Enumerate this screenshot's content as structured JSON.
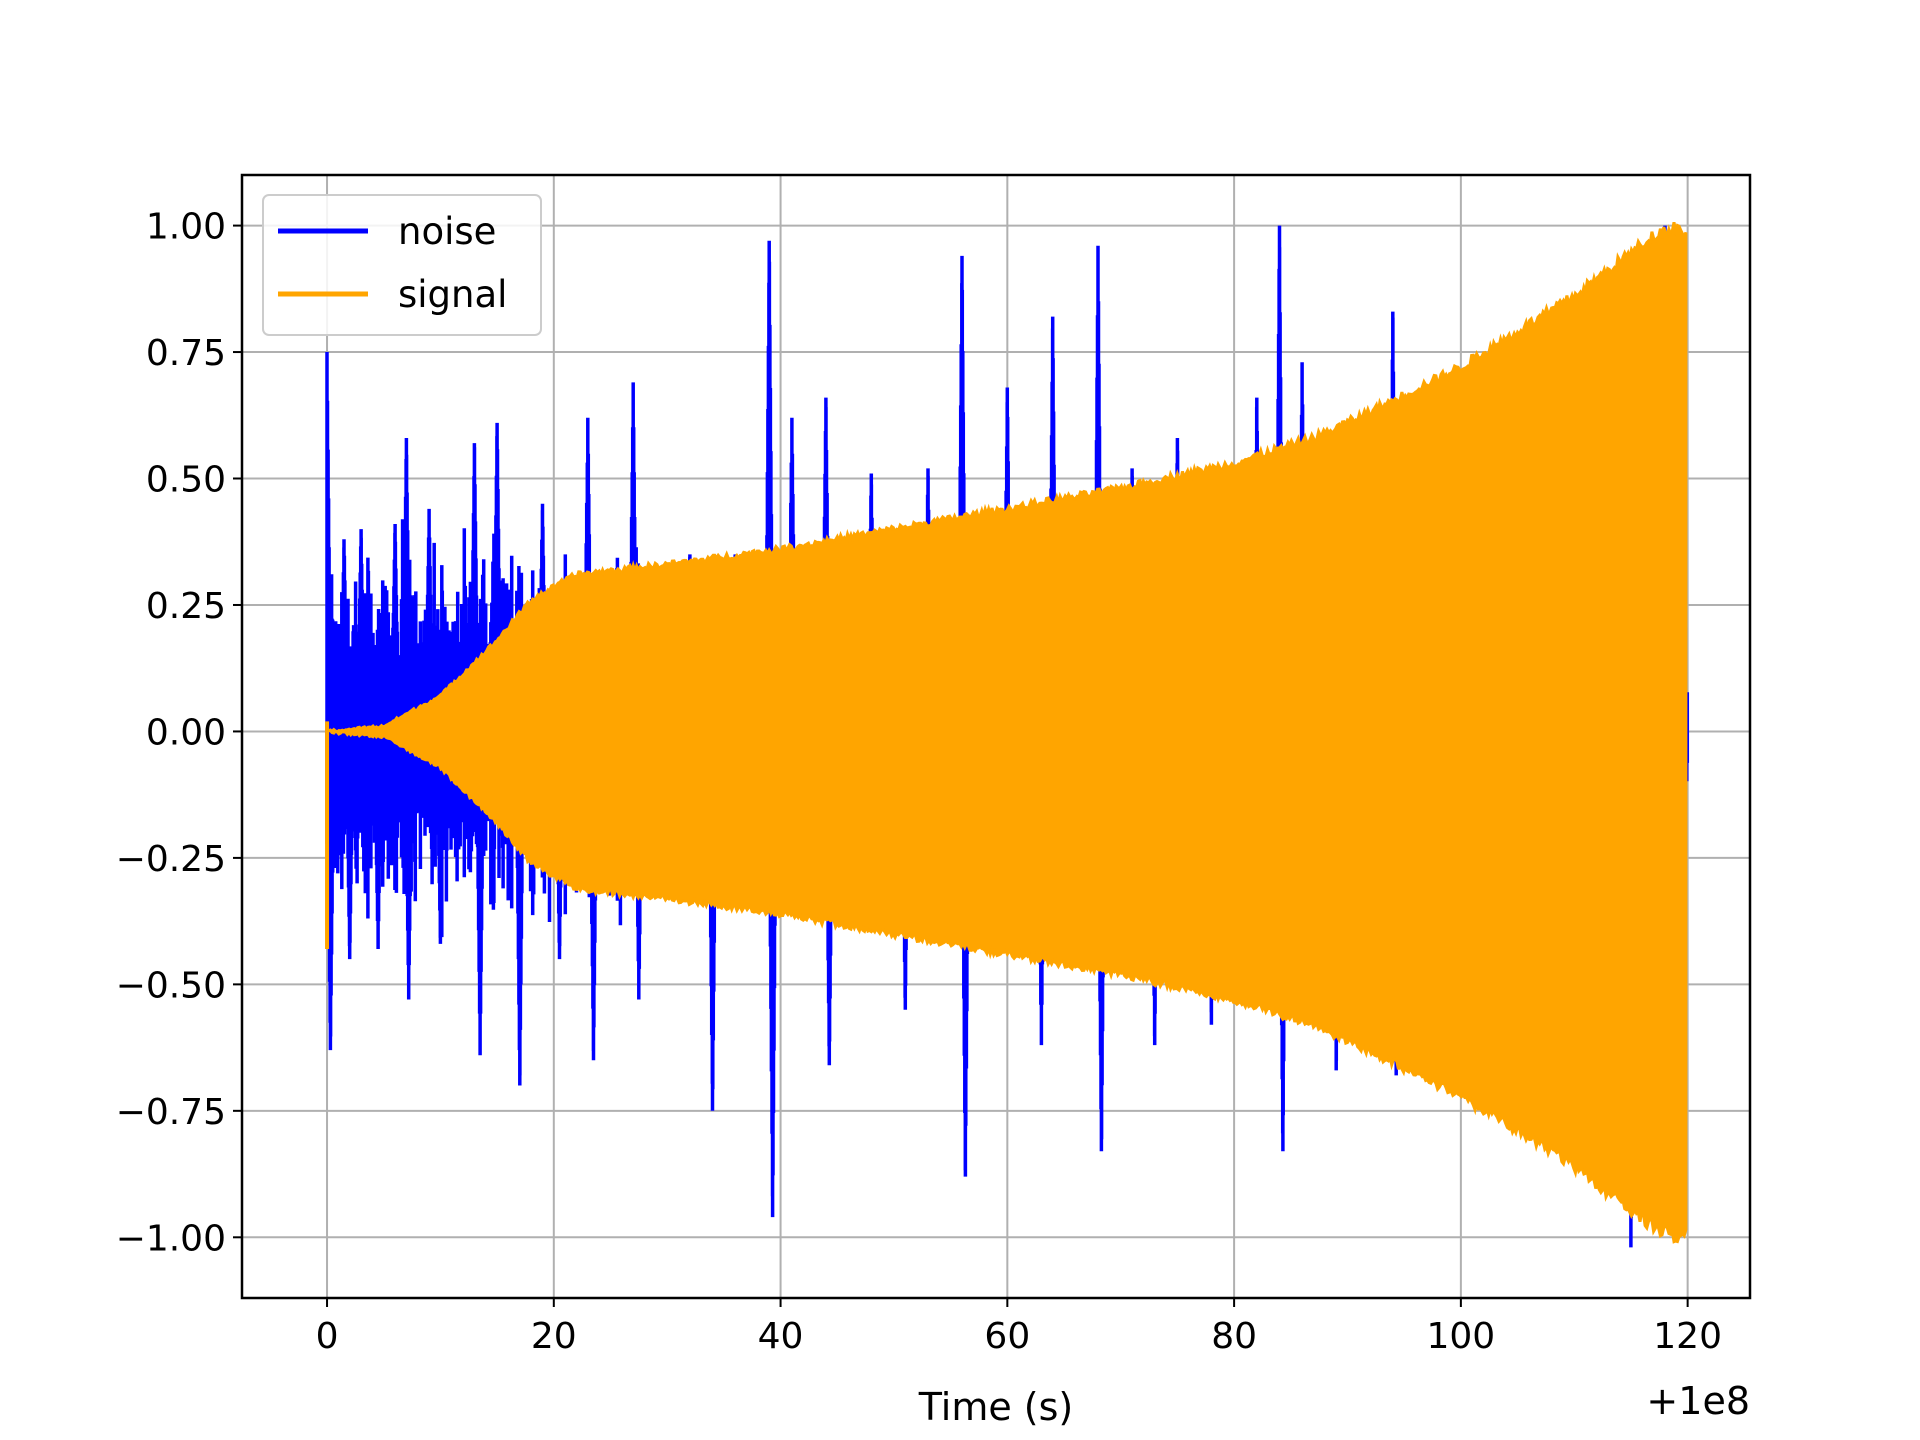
{
  "chart_data": {
    "type": "line",
    "title": "",
    "xlabel": "Time (s)",
    "ylabel": "",
    "x_offset_label": "+1e8",
    "xlim": [
      -7.5,
      125.5
    ],
    "ylim": [
      -1.12,
      1.1
    ],
    "grid": true,
    "legend_position": "upper left",
    "x_ticks": [
      0,
      20,
      40,
      60,
      80,
      100,
      120
    ],
    "x_tick_labels": [
      "0",
      "20",
      "40",
      "60",
      "80",
      "100",
      "120"
    ],
    "y_ticks": [
      1.0,
      0.75,
      0.5,
      0.25,
      0.0,
      -0.25,
      -0.5,
      -0.75,
      -1.0
    ],
    "y_tick_labels": [
      "1.00",
      "0.75",
      "0.50",
      "0.25",
      "0.00",
      "−0.25",
      "−0.50",
      "−0.75",
      "−1.00"
    ],
    "series": [
      {
        "name": "noise",
        "color": "#0000ff",
        "kind": "burst-noise",
        "x_range": [
          0,
          120
        ],
        "spike_peaks": [
          [
            0.0,
            0.75
          ],
          [
            0.3,
            -0.63
          ],
          [
            1.5,
            0.38
          ],
          [
            2.0,
            -0.45
          ],
          [
            3.0,
            0.4
          ],
          [
            4.5,
            -0.43
          ],
          [
            6.0,
            0.41
          ],
          [
            7.0,
            0.58
          ],
          [
            7.2,
            -0.53
          ],
          [
            9.0,
            0.44
          ],
          [
            10.0,
            -0.42
          ],
          [
            13.0,
            0.57
          ],
          [
            13.5,
            -0.64
          ],
          [
            15.0,
            0.61
          ],
          [
            17.0,
            -0.7
          ],
          [
            19.0,
            0.45
          ],
          [
            20.5,
            -0.45
          ],
          [
            23.0,
            0.62
          ],
          [
            23.5,
            -0.65
          ],
          [
            27.0,
            0.69
          ],
          [
            27.5,
            -0.53
          ],
          [
            32.0,
            0.35
          ],
          [
            34.0,
            -0.75
          ],
          [
            36.0,
            0.35
          ],
          [
            39.0,
            0.97
          ],
          [
            39.3,
            -0.96
          ],
          [
            41.0,
            0.62
          ],
          [
            44.0,
            0.66
          ],
          [
            44.3,
            -0.66
          ],
          [
            48.0,
            0.51
          ],
          [
            51.0,
            -0.55
          ],
          [
            53.0,
            0.52
          ],
          [
            56.0,
            0.94
          ],
          [
            56.3,
            -0.88
          ],
          [
            60.0,
            0.68
          ],
          [
            63.0,
            -0.62
          ],
          [
            64.0,
            0.82
          ],
          [
            68.0,
            0.96
          ],
          [
            68.3,
            -0.83
          ],
          [
            71.0,
            0.52
          ],
          [
            73.0,
            -0.62
          ],
          [
            75.0,
            0.58
          ],
          [
            78.0,
            -0.58
          ],
          [
            82.0,
            0.66
          ],
          [
            84.0,
            1.0
          ],
          [
            84.3,
            -0.83
          ],
          [
            86.0,
            0.73
          ],
          [
            89.0,
            -0.67
          ],
          [
            94.0,
            0.83
          ],
          [
            94.3,
            -0.68
          ],
          [
            100.0,
            -0.62
          ],
          [
            105.0,
            0.6
          ],
          [
            110.0,
            -0.8
          ],
          [
            115.0,
            -1.02
          ],
          [
            118.0,
            1.0
          ]
        ]
      },
      {
        "name": "signal",
        "color": "#ffa500",
        "kind": "chirp-envelope",
        "x_range": [
          0,
          120
        ],
        "envelope": [
          [
            0,
            0.0
          ],
          [
            5,
            0.01
          ],
          [
            10,
            0.07
          ],
          [
            15,
            0.18
          ],
          [
            18,
            0.26
          ],
          [
            22,
            0.31
          ],
          [
            30,
            0.33
          ],
          [
            40,
            0.36
          ],
          [
            50,
            0.4
          ],
          [
            60,
            0.44
          ],
          [
            70,
            0.48
          ],
          [
            80,
            0.53
          ],
          [
            87,
            0.58
          ],
          [
            90,
            0.61
          ],
          [
            100,
            0.72
          ],
          [
            110,
            0.86
          ],
          [
            117,
            0.98
          ],
          [
            119,
            1.0
          ],
          [
            120,
            0.98
          ]
        ]
      }
    ]
  }
}
